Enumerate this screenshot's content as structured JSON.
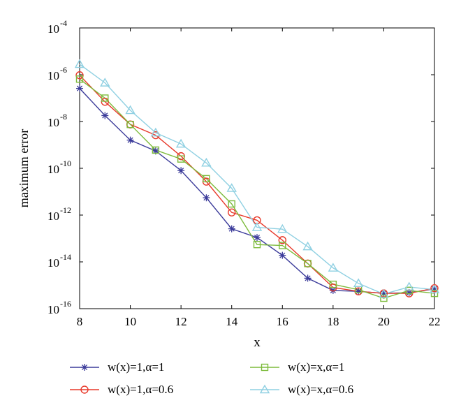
{
  "chart_data": {
    "type": "line",
    "title": "",
    "xlabel": "x",
    "ylabel": "maximum error",
    "yscale": "log",
    "xlim": [
      8,
      22
    ],
    "ylim": [
      1e-16,
      0.0001
    ],
    "x_ticks": [
      "8",
      "10",
      "12",
      "14",
      "16",
      "18",
      "20",
      "22"
    ],
    "y_ticks": [
      {
        "base": "10",
        "exp": "-4"
      },
      {
        "base": "10",
        "exp": "-6"
      },
      {
        "base": "10",
        "exp": "-8"
      },
      {
        "base": "10",
        "exp": "-10"
      },
      {
        "base": "10",
        "exp": "-12"
      },
      {
        "base": "10",
        "exp": "-14"
      },
      {
        "base": "10",
        "exp": "-16"
      }
    ],
    "grid": false,
    "legend_position": "bottom",
    "x": [
      8,
      9,
      10,
      11,
      12,
      13,
      14,
      15,
      16,
      17,
      18,
      19,
      20,
      21,
      22
    ],
    "series": [
      {
        "name": "w(x)=1,α=1",
        "color": "#3b3b9a",
        "marker": "star",
        "values": [
          2.6e-07,
          1.8e-08,
          1.6e-09,
          5.5e-10,
          8e-11,
          5.5e-12,
          2.6e-13,
          1.1e-13,
          1.9e-14,
          2e-15,
          6e-16,
          5.5e-16,
          4.5e-16,
          4.8e-16,
          7e-16
        ]
      },
      {
        "name": "w(x)=1,α=0.6",
        "color": "#e8392a",
        "marker": "circle",
        "values": [
          9.5e-07,
          7e-08,
          7.5e-09,
          2.6e-09,
          3.3e-10,
          2.7e-11,
          1.3e-12,
          6e-13,
          8.5e-14,
          8.5e-15,
          8e-16,
          5.5e-16,
          4.5e-16,
          4.5e-16,
          7.5e-16
        ]
      },
      {
        "name": "w(x)=x,α=1",
        "color": "#7dbb3c",
        "marker": "square",
        "values": [
          6.5e-07,
          1e-07,
          7.5e-09,
          6e-10,
          2.5e-10,
          3.6e-11,
          3e-12,
          5.5e-14,
          5e-14,
          8.5e-15,
          1.1e-15,
          6.5e-16,
          2.8e-16,
          6e-16,
          4.5e-16
        ]
      },
      {
        "name": "w(x)=x,α=0.6",
        "color": "#8fd0e2",
        "marker": "triangle",
        "values": [
          2.8e-06,
          4.5e-07,
          3e-08,
          3.3e-09,
          1.1e-09,
          1.7e-10,
          1.4e-11,
          3e-13,
          2.5e-13,
          4.5e-14,
          5.5e-15,
          1.2e-15,
          4.2e-16,
          8.5e-16,
          6.5e-16
        ]
      }
    ]
  }
}
